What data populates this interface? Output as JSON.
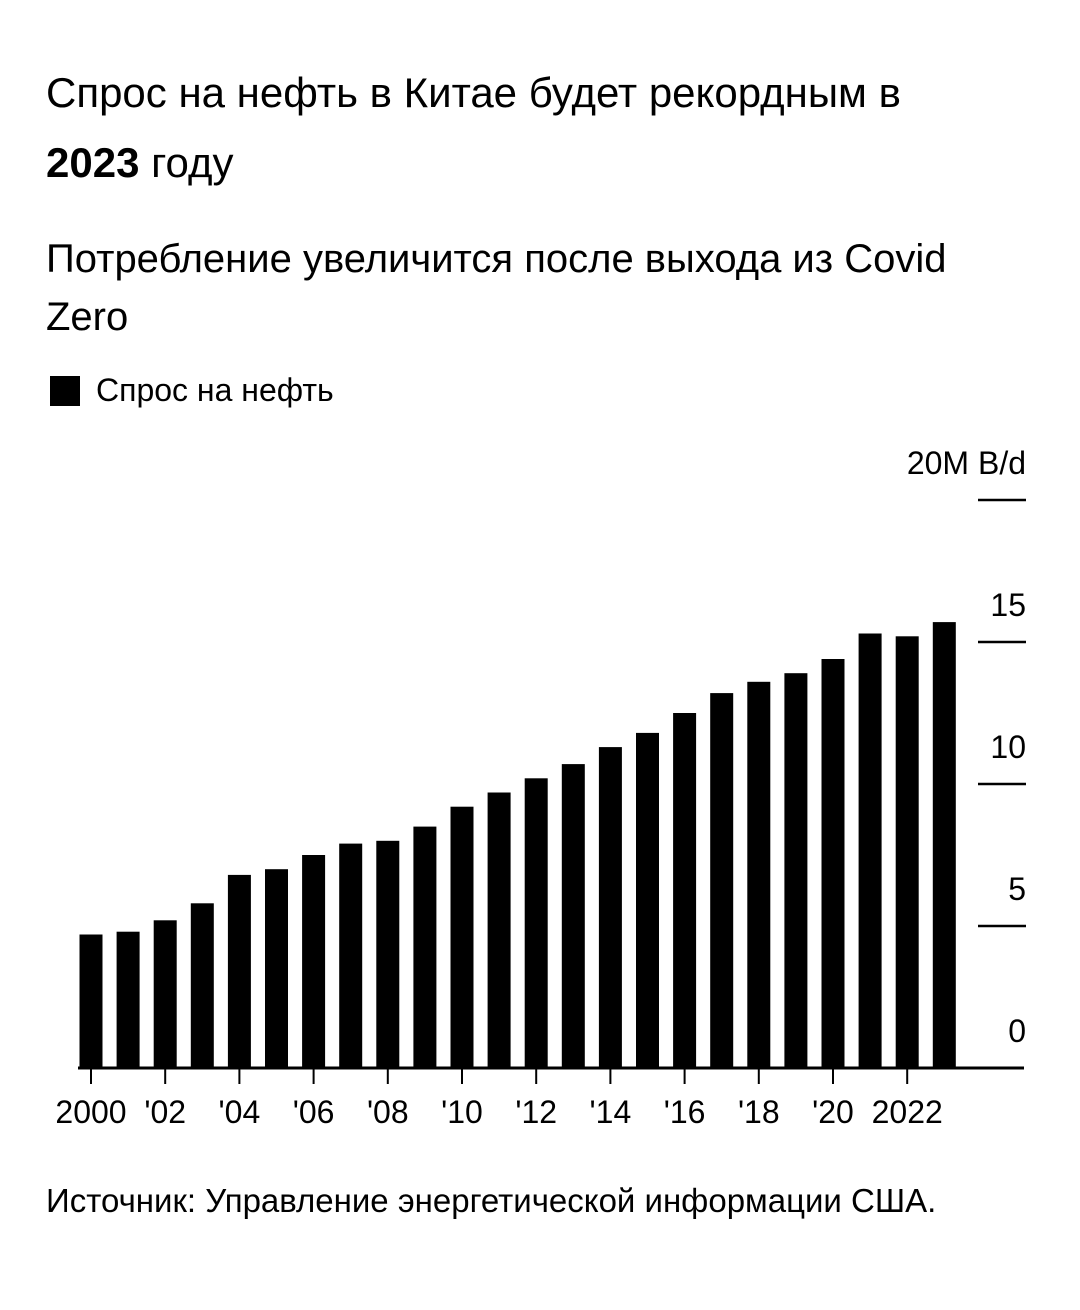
{
  "title": {
    "part1": "Спрос на нефть в Китае будет рекордным в",
    "bold": "2023",
    "part2": "году"
  },
  "subtitle": "Потребление увеличится после выхода из Covid Zero",
  "legend": {
    "label": "Спрос на нефть",
    "color": "#000000"
  },
  "source": "Источник: Управление энергетической информации США.",
  "colors": {
    "bar": "#000000",
    "axis": "#000000",
    "background": "#ffffff"
  },
  "chart_data": {
    "type": "bar",
    "categories": [
      "2000",
      "2001",
      "2002",
      "2003",
      "2004",
      "2005",
      "2006",
      "2007",
      "2008",
      "2009",
      "2010",
      "2011",
      "2012",
      "2013",
      "2014",
      "2015",
      "2016",
      "2017",
      "2018",
      "2019",
      "2020",
      "2021",
      "2022",
      "2023"
    ],
    "series": [
      {
        "name": "Спрос на нефть",
        "values": [
          4.7,
          4.8,
          5.2,
          5.8,
          6.8,
          7.0,
          7.5,
          7.9,
          8.0,
          8.5,
          9.2,
          9.7,
          10.2,
          10.7,
          11.3,
          11.8,
          12.5,
          13.2,
          13.6,
          13.9,
          14.4,
          15.3,
          15.2,
          15.7
        ]
      }
    ],
    "x_tick_labels": [
      {
        "category": "2000",
        "label": "2000"
      },
      {
        "category": "2002",
        "label": "'02"
      },
      {
        "category": "2004",
        "label": "'04"
      },
      {
        "category": "2006",
        "label": "'06"
      },
      {
        "category": "2008",
        "label": "'08"
      },
      {
        "category": "2010",
        "label": "'10"
      },
      {
        "category": "2012",
        "label": "'12"
      },
      {
        "category": "2014",
        "label": "'14"
      },
      {
        "category": "2016",
        "label": "'16"
      },
      {
        "category": "2018",
        "label": "'18"
      },
      {
        "category": "2020",
        "label": "'20"
      },
      {
        "category": "2022",
        "label": "2022"
      }
    ],
    "y_ticks": [
      {
        "value": 0,
        "label": "0"
      },
      {
        "value": 5,
        "label": "5"
      },
      {
        "value": 10,
        "label": "10"
      },
      {
        "value": 15,
        "label": "15"
      },
      {
        "value": 20,
        "label": "20M B/d"
      }
    ],
    "ylim": [
      0,
      20
    ],
    "y_axis_position": "right",
    "grid": false,
    "legend_position": "top-left"
  }
}
